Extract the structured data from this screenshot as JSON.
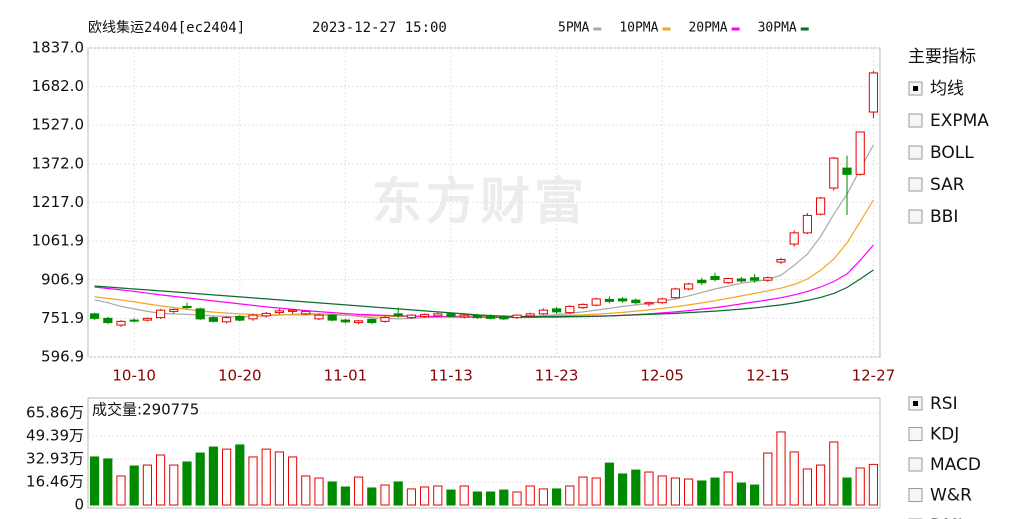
{
  "chart_data": [
    {
      "type": "candlestick",
      "title": "欧线集运2404[ec2404]",
      "subtitle": "2023-12-27 15:00",
      "watermark": "东方财富",
      "categories": [
        null,
        null,
        null,
        "10-10",
        null,
        null,
        null,
        null,
        null,
        null,
        null,
        "10-20",
        null,
        null,
        null,
        null,
        null,
        null,
        null,
        "11-01",
        null,
        null,
        null,
        null,
        null,
        null,
        null,
        "11-13",
        null,
        null,
        null,
        null,
        null,
        null,
        null,
        "11-23",
        null,
        null,
        null,
        null,
        null,
        null,
        null,
        "12-05",
        null,
        null,
        null,
        null,
        null,
        null,
        null,
        "12-15",
        null,
        null,
        null,
        null,
        null,
        null,
        null,
        "12-27"
      ],
      "open": [
        770,
        752,
        725,
        745,
        745,
        755,
        780,
        800,
        790,
        755,
        738,
        760,
        750,
        762,
        775,
        780,
        770,
        750,
        765,
        745,
        735,
        748,
        740,
        770,
        755,
        760,
        762,
        770,
        758,
        765,
        762,
        758,
        755,
        762,
        770,
        790,
        775,
        795,
        805,
        828,
        830,
        825,
        810,
        815,
        835,
        870,
        905,
        920,
        895,
        910,
        915,
        905,
        978,
        1050,
        1095,
        1170,
        1275,
        1355,
        1330,
        1580
      ],
      "high": [
        775,
        758,
        745,
        752,
        755,
        790,
        792,
        815,
        795,
        760,
        760,
        765,
        770,
        778,
        790,
        790,
        785,
        770,
        770,
        750,
        745,
        752,
        760,
        795,
        768,
        772,
        775,
        775,
        768,
        770,
        768,
        765,
        768,
        775,
        792,
        798,
        805,
        812,
        835,
        840,
        838,
        832,
        818,
        835,
        875,
        895,
        915,
        935,
        915,
        918,
        930,
        920,
        995,
        1105,
        1175,
        1240,
        1400,
        1405,
        1500,
        1745
      ],
      "low": [
        745,
        730,
        718,
        735,
        740,
        750,
        772,
        790,
        745,
        735,
        732,
        740,
        742,
        755,
        768,
        770,
        765,
        745,
        740,
        732,
        728,
        730,
        735,
        755,
        750,
        755,
        758,
        755,
        752,
        750,
        748,
        745,
        750,
        758,
        765,
        770,
        770,
        790,
        800,
        812,
        815,
        808,
        800,
        810,
        830,
        865,
        885,
        900,
        890,
        895,
        895,
        898,
        970,
        1040,
        1090,
        1165,
        1265,
        1167,
        1325,
        1555
      ],
      "close": [
        752,
        735,
        740,
        742,
        752,
        785,
        788,
        795,
        750,
        740,
        755,
        745,
        765,
        772,
        782,
        785,
        780,
        765,
        745,
        738,
        742,
        735,
        755,
        762,
        765,
        768,
        770,
        760,
        765,
        755,
        752,
        750,
        765,
        770,
        785,
        778,
        800,
        808,
        830,
        820,
        822,
        815,
        815,
        830,
        870,
        890,
        895,
        908,
        912,
        902,
        905,
        915,
        988,
        1095,
        1165,
        1235,
        1395,
        1330,
        1500,
        1737
      ],
      "up_color": "#e60000",
      "down_color": "#008a00",
      "series": [
        {
          "name": "5PMA",
          "color": "#a8a8a8",
          "values": [
            826,
            815,
            800,
            790,
            780,
            772,
            770,
            768,
            765,
            762,
            760,
            758,
            760,
            762,
            765,
            768,
            770,
            770,
            768,
            765,
            760,
            755,
            752,
            750,
            752,
            755,
            757,
            760,
            762,
            762,
            760,
            758,
            758,
            760,
            763,
            767,
            772,
            778,
            785,
            792,
            800,
            806,
            812,
            820,
            830,
            842,
            856,
            870,
            882,
            893,
            900,
            908,
            925,
            965,
            1010,
            1080,
            1170,
            1250,
            1350,
            1448
          ]
        },
        {
          "name": "10PMA",
          "color": "#f5a623",
          "values": [
            838,
            832,
            826,
            818,
            810,
            802,
            795,
            788,
            782,
            777,
            773,
            770,
            768,
            767,
            766,
            766,
            766,
            766,
            765,
            764,
            763,
            762,
            761,
            760,
            760,
            759,
            759,
            759,
            759,
            759,
            759,
            759,
            759,
            760,
            761,
            762,
            764,
            766,
            769,
            772,
            776,
            781,
            786,
            792,
            798,
            806,
            814,
            823,
            832,
            842,
            852,
            862,
            873,
            888,
            910,
            945,
            990,
            1055,
            1140,
            1227
          ]
        },
        {
          "name": "20PMA",
          "color": "#ff00ff",
          "values": [
            878,
            872,
            866,
            860,
            853,
            846,
            840,
            834,
            828,
            822,
            816,
            810,
            804,
            798,
            793,
            788,
            783,
            779,
            775,
            771,
            768,
            766,
            764,
            762,
            761,
            760,
            759,
            758,
            757,
            757,
            756,
            756,
            756,
            756,
            757,
            757,
            758,
            759,
            760,
            762,
            764,
            767,
            770,
            774,
            778,
            783,
            789,
            795,
            802,
            810,
            818,
            826,
            835,
            846,
            860,
            878,
            900,
            930,
            985,
            1046
          ]
        },
        {
          "name": "30PMA",
          "color": "#0b6b2e",
          "values": [
            882,
            878,
            874,
            870,
            866,
            862,
            858,
            854,
            850,
            846,
            842,
            838,
            834,
            830,
            826,
            822,
            818,
            814,
            810,
            806,
            802,
            798,
            794,
            790,
            786,
            782,
            778,
            774,
            770,
            766,
            763,
            761,
            760,
            759,
            759,
            759,
            760,
            760,
            761,
            762,
            764,
            766,
            768,
            770,
            772,
            775,
            778,
            781,
            785,
            789,
            794,
            800,
            806,
            814,
            824,
            836,
            852,
            876,
            910,
            946
          ]
        }
      ],
      "ylim": [
        596.9,
        1837.0
      ],
      "yticks": [
        596.9,
        751.9,
        906.9,
        1061.9,
        {
          "value": 1217.0,
          "label": "1217.0"
        },
        {
          "value": 1372.0,
          "label": "1372.0"
        },
        {
          "value": 1527.0,
          "label": "1527.0"
        },
        {
          "value": 1682.0,
          "label": "1682.0"
        },
        {
          "value": 1837.0,
          "label": "1837.0"
        }
      ],
      "grid": true,
      "legend": "top"
    },
    {
      "type": "bar",
      "label": "成交量:290775",
      "values": [
        34.4,
        33,
        20.8,
        27.9,
        28.6,
        35.8,
        28.6,
        30.8,
        37.2,
        41.5,
        40,
        43,
        34.4,
        40,
        38,
        34.4,
        20.8,
        19.3,
        16.5,
        12.9,
        20,
        12.2,
        14.3,
        16.5,
        11.5,
        12.9,
        13.6,
        10.7,
        13.6,
        9.3,
        9.3,
        10.7,
        9.3,
        13.6,
        11.5,
        11.5,
        13.6,
        20,
        19.3,
        30,
        22.2,
        25,
        23.6,
        20.8,
        19.3,
        18.6,
        17.2,
        19.3,
        23.6,
        15.7,
        14.3,
        37.2,
        52.3,
        38,
        25.8,
        28.6,
        45.1,
        19.3,
        26.5,
        29.08
      ],
      "up_color": "#e60000",
      "down_color": "#008a00",
      "ylim": [
        0,
        65.86
      ],
      "yticks": [
        0,
        {
          "value": 16.46,
          "label": "16.46万"
        },
        {
          "value": 32.93,
          "label": "32.93万"
        },
        {
          "value": 49.39,
          "label": "49.39万"
        },
        {
          "value": 65.86,
          "label": "65.86万"
        }
      ],
      "grid": true
    }
  ],
  "main_indicators": {
    "title": "主要指标",
    "options": [
      "均线",
      "EXPMA",
      "BOLL",
      "SAR",
      "BBI"
    ],
    "selected": 0
  },
  "sub_indicators": {
    "options": [
      "RSI",
      "KDJ",
      "MACD",
      "W&R",
      "DMI"
    ],
    "selected": 0
  }
}
